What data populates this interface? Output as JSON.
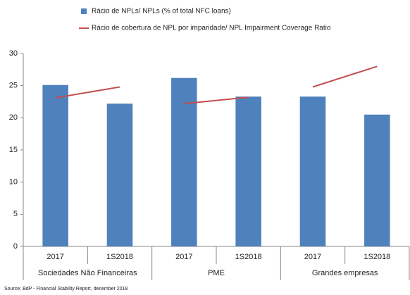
{
  "chart_data": {
    "type": "bar",
    "categories": [
      "2017",
      "1S2018",
      "2017",
      "1S2018",
      "2017",
      "1S2018"
    ],
    "groups": [
      "Sociedades Não Financeiras",
      "PME",
      "Grandes empresas"
    ],
    "series": [
      {
        "name": "Rácio de NPLs/ NPLs (% of total NFC loans)",
        "type": "bar",
        "color": "#4f81bd",
        "values": [
          25.1,
          22.2,
          26.2,
          23.3,
          23.3,
          20.5
        ]
      },
      {
        "name": "Rácio de cobertura de NPL por imparidade/ NPL Impairment Coverage Ratio",
        "type": "line",
        "color": "#c0504d",
        "values": [
          23.1,
          24.8,
          22.2,
          23.2,
          24.8,
          28.0
        ]
      }
    ],
    "ylim": [
      0,
      30
    ],
    "yticks": [
      0,
      5,
      10,
      15,
      20,
      25,
      30
    ],
    "source": "Source: BdP - Financial Stability Report, december 2018"
  }
}
